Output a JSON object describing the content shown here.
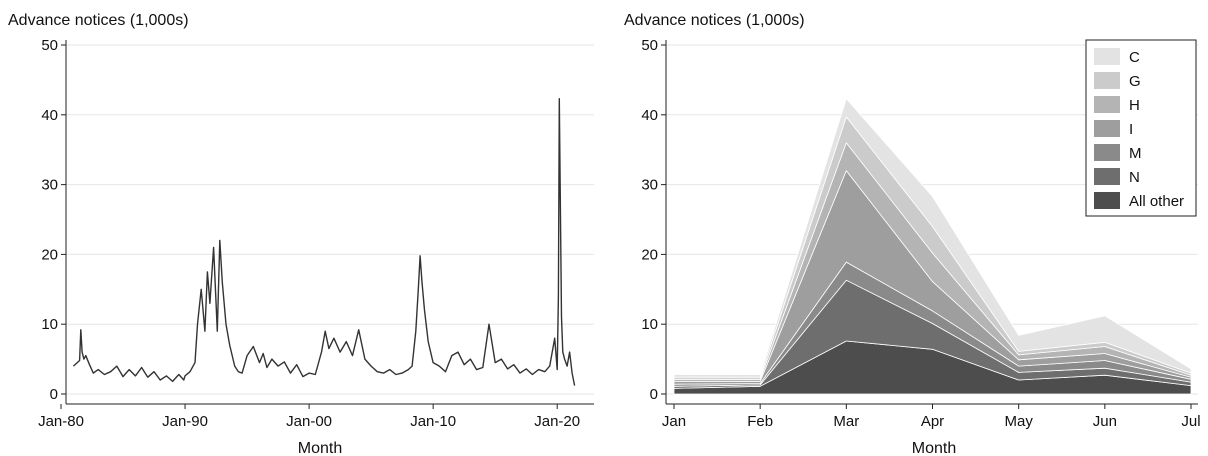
{
  "chart_data": [
    {
      "type": "line",
      "ylabel": "Advance notices (1,000s)",
      "xlabel": "Month",
      "ylim": [
        0,
        50
      ],
      "yticks": [
        0,
        10,
        20,
        30,
        40,
        50
      ],
      "xlim": [
        1980.0,
        2022.0
      ],
      "xticks": [
        {
          "v": 1980,
          "label": "Jan-80"
        },
        {
          "v": 1990,
          "label": "Jan-90"
        },
        {
          "v": 2000,
          "label": "Jan-00"
        },
        {
          "v": 2010,
          "label": "Jan-10"
        },
        {
          "v": 2020,
          "label": "Jan-20"
        }
      ],
      "grid": true,
      "line_color": "#333333",
      "series": [
        {
          "x": [
            1981.0,
            1981.5,
            1981.6,
            1981.7,
            1981.85,
            1982.0,
            1982.3,
            1982.6,
            1983.0,
            1983.5,
            1984.0,
            1984.5,
            1985.0,
            1985.5,
            1986.0,
            1986.5,
            1987.0,
            1987.5,
            1988.0,
            1988.5,
            1989.0,
            1989.5,
            1989.9,
            1990.0,
            1990.4,
            1990.8,
            1991.0,
            1991.3,
            1991.6,
            1991.8,
            1992.0,
            1992.3,
            1992.6,
            1992.8,
            1993.0,
            1993.3,
            1993.6,
            1994.0,
            1994.3,
            1994.6,
            1995.0,
            1995.5,
            1996.0,
            1996.3,
            1996.6,
            1997.0,
            1997.5,
            1998.0,
            1998.5,
            1999.0,
            1999.5,
            2000.0,
            2000.5,
            2001.0,
            2001.3,
            2001.6,
            2002.0,
            2002.5,
            2003.0,
            2003.5,
            2004.0,
            2004.5,
            2005.0,
            2005.5,
            2006.0,
            2006.5,
            2007.0,
            2007.5,
            2008.0,
            2008.3,
            2008.6,
            2008.8,
            2008.95,
            2009.1,
            2009.3,
            2009.6,
            2010.0,
            2010.5,
            2011.0,
            2011.5,
            2012.0,
            2012.5,
            2013.0,
            2013.5,
            2014.0,
            2014.5,
            2015.0,
            2015.5,
            2016.0,
            2016.5,
            2017.0,
            2017.5,
            2018.0,
            2018.5,
            2019.0,
            2019.4,
            2019.8,
            2020.0,
            2020.1,
            2020.17,
            2020.25,
            2020.35,
            2020.45,
            2020.6,
            2020.8,
            2021.0,
            2021.2,
            2021.4
          ],
          "y": [
            4.0,
            4.8,
            9.2,
            6.0,
            5.0,
            5.5,
            4.2,
            3.0,
            3.5,
            2.8,
            3.2,
            4.0,
            2.5,
            3.5,
            2.6,
            3.8,
            2.4,
            3.2,
            2.0,
            2.6,
            1.8,
            2.8,
            2.0,
            2.6,
            3.2,
            4.5,
            10.0,
            15.0,
            9.0,
            17.5,
            13.0,
            21.0,
            9.0,
            22.0,
            16.0,
            10.0,
            7.0,
            4.0,
            3.2,
            3.0,
            5.5,
            6.8,
            4.5,
            5.8,
            3.8,
            5.0,
            4.0,
            4.6,
            3.0,
            4.2,
            2.5,
            3.0,
            2.8,
            6.0,
            9.0,
            6.5,
            8.0,
            6.0,
            7.5,
            5.5,
            9.2,
            5.0,
            4.0,
            3.2,
            3.0,
            3.5,
            2.8,
            3.0,
            3.5,
            4.0,
            9.0,
            15.0,
            19.8,
            16.0,
            12.0,
            7.5,
            4.5,
            4.0,
            3.2,
            5.5,
            6.0,
            4.2,
            5.0,
            3.5,
            3.8,
            10.0,
            4.5,
            5.0,
            3.6,
            4.2,
            3.0,
            3.6,
            2.8,
            3.5,
            3.2,
            4.0,
            8.0,
            3.5,
            14.0,
            42.3,
            28.0,
            11.0,
            6.0,
            5.0,
            4.0,
            6.0,
            3.0,
            1.2
          ]
        }
      ]
    },
    {
      "type": "area",
      "ylabel": "Advance notices (1,000s)",
      "xlabel": "Month",
      "ylim": [
        0,
        50
      ],
      "yticks": [
        0,
        10,
        20,
        30,
        40,
        50
      ],
      "categories": [
        "Jan",
        "Feb",
        "Mar",
        "Apr",
        "May",
        "Jun",
        "Jul"
      ],
      "stacked": true,
      "grid": true,
      "legend": "top-right",
      "series": [
        {
          "name": "All other",
          "color": "#4d4d4d",
          "values": [
            0.8,
            1.1,
            7.6,
            6.4,
            2.0,
            2.7,
            1.2
          ]
        },
        {
          "name": "N",
          "color": "#6e6e6e",
          "values": [
            0.3,
            0.2,
            8.7,
            3.7,
            1.1,
            1.0,
            0.5
          ]
        },
        {
          "name": "M",
          "color": "#8a8a8a",
          "values": [
            0.3,
            0.2,
            2.6,
            1.8,
            0.9,
            1.1,
            0.4
          ]
        },
        {
          "name": "I",
          "color": "#9e9e9e",
          "values": [
            0.4,
            0.3,
            13.1,
            4.2,
            0.9,
            1.0,
            0.3
          ]
        },
        {
          "name": "H",
          "color": "#b4b4b4",
          "values": [
            0.3,
            0.3,
            4.0,
            4.1,
            0.7,
            1.0,
            0.3
          ]
        },
        {
          "name": "G",
          "color": "#cbcbcb",
          "values": [
            0.3,
            0.3,
            3.7,
            3.8,
            0.5,
            0.6,
            0.3
          ]
        },
        {
          "name": "C",
          "color": "#e3e3e3",
          "values": [
            0.4,
            0.4,
            2.6,
            4.3,
            2.3,
            3.8,
            0.6
          ]
        }
      ]
    }
  ]
}
